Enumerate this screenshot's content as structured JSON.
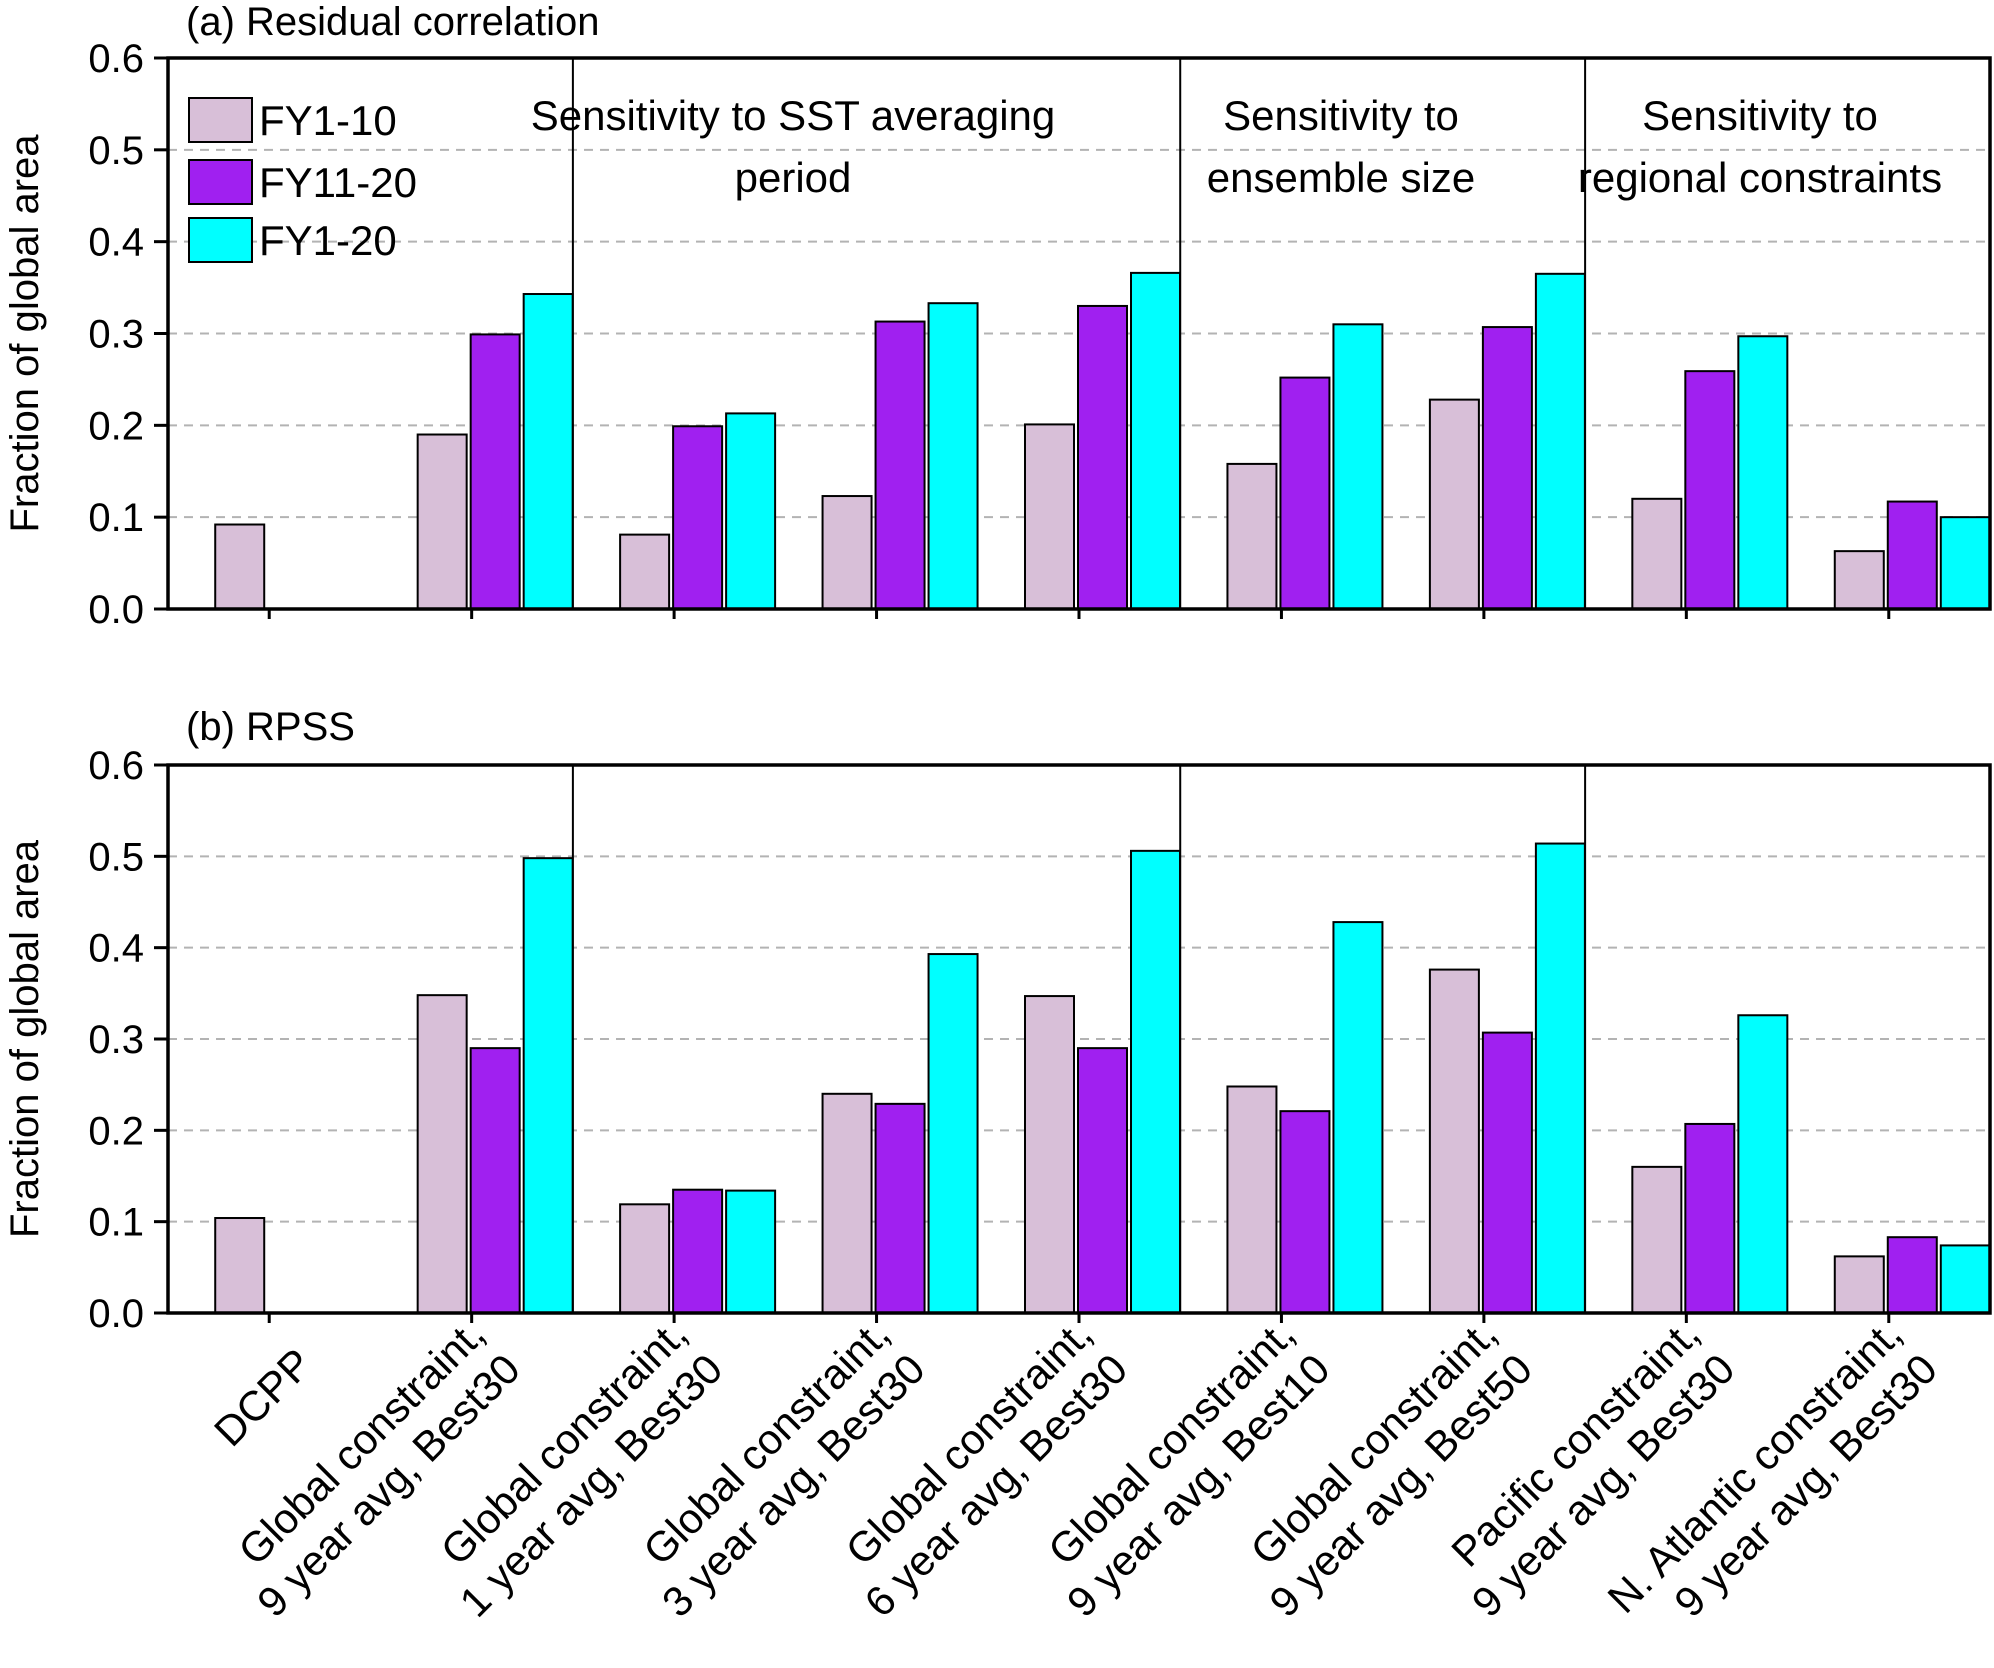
{
  "chart_data": [
    {
      "type": "bar",
      "title": "(a) Residual correlation",
      "ylabel": "Fraction of global area",
      "xlabel": "",
      "ylim": [
        0,
        0.6
      ],
      "yticks": [
        "0.0",
        "0.1",
        "0.2",
        "0.3",
        "0.4",
        "0.5",
        "0.6"
      ],
      "grid": "horizontal dashed",
      "legend_position": "top-left",
      "categories": [
        "DCPP",
        "Global constraint, 9 year avg, Best30",
        "Global constraint, 1 year avg, Best30",
        "Global constraint, 3 year avg, Best30",
        "Global constraint, 6 year avg, Best30",
        "Global constraint, 9 year avg, Best10",
        "Global constraint, 9 year avg, Best50",
        "Pacific constraint, 9 year avg, Best30",
        "N. Atlantic constraint, 9 year avg, Best30"
      ],
      "series": [
        {
          "name": "FY1-10",
          "color": "#d8bfd8",
          "values": [
            0.092,
            0.19,
            0.081,
            0.123,
            0.201,
            0.158,
            0.228,
            0.12,
            0.063
          ]
        },
        {
          "name": "FY11-20",
          "color": "#a020f0",
          "values": [
            null,
            0.299,
            0.199,
            0.313,
            0.33,
            0.252,
            0.307,
            0.259,
            0.117
          ]
        },
        {
          "name": "FY1-20",
          "color": "#00ffff",
          "values": [
            null,
            0.343,
            0.213,
            0.333,
            0.366,
            0.31,
            0.365,
            0.297,
            0.1
          ]
        }
      ],
      "section_labels": [
        [
          "Sensitivity to SST averaging",
          "period"
        ],
        [
          "Sensitivity to",
          "ensemble size"
        ],
        [
          "Sensitivity to",
          "regional constraints"
        ]
      ]
    },
    {
      "type": "bar",
      "title": "(b) RPSS",
      "ylabel": "Fraction of global area",
      "xlabel": "",
      "ylim": [
        0,
        0.6
      ],
      "yticks": [
        "0.0",
        "0.1",
        "0.2",
        "0.3",
        "0.4",
        "0.5",
        "0.6"
      ],
      "grid": "horizontal dashed",
      "categories": [
        "DCPP",
        "Global constraint, 9 year avg, Best30",
        "Global constraint, 1 year avg, Best30",
        "Global constraint, 3 year avg, Best30",
        "Global constraint, 6 year avg, Best30",
        "Global constraint, 9 year avg, Best10",
        "Global constraint, 9 year avg, Best50",
        "Pacific constraint, 9 year avg, Best30",
        "N. Atlantic constraint, 9 year avg, Best30"
      ],
      "series": [
        {
          "name": "FY1-10",
          "color": "#d8bfd8",
          "values": [
            0.104,
            0.348,
            0.119,
            0.24,
            0.347,
            0.248,
            0.376,
            0.16,
            0.062
          ]
        },
        {
          "name": "FY11-20",
          "color": "#a020f0",
          "values": [
            null,
            0.29,
            0.135,
            0.229,
            0.29,
            0.221,
            0.307,
            0.207,
            0.083
          ]
        },
        {
          "name": "FY1-20",
          "color": "#00ffff",
          "values": [
            null,
            0.498,
            0.134,
            0.393,
            0.506,
            0.428,
            0.514,
            0.326,
            0.074
          ]
        }
      ]
    }
  ],
  "x_tick_labels": [
    [
      "DCPP"
    ],
    [
      "Global constraint,",
      "9 year avg, Best30"
    ],
    [
      "Global constraint,",
      "1 year avg, Best30"
    ],
    [
      "Global constraint,",
      "3 year avg, Best30"
    ],
    [
      "Global constraint,",
      "6 year avg, Best30"
    ],
    [
      "Global constraint,",
      "9 year avg, Best10"
    ],
    [
      "Global constraint,",
      "9 year avg, Best50"
    ],
    [
      "Pacific constraint,",
      "9 year avg, Best30"
    ],
    [
      "N. Atlantic constraint,",
      "9 year avg, Best30"
    ]
  ]
}
